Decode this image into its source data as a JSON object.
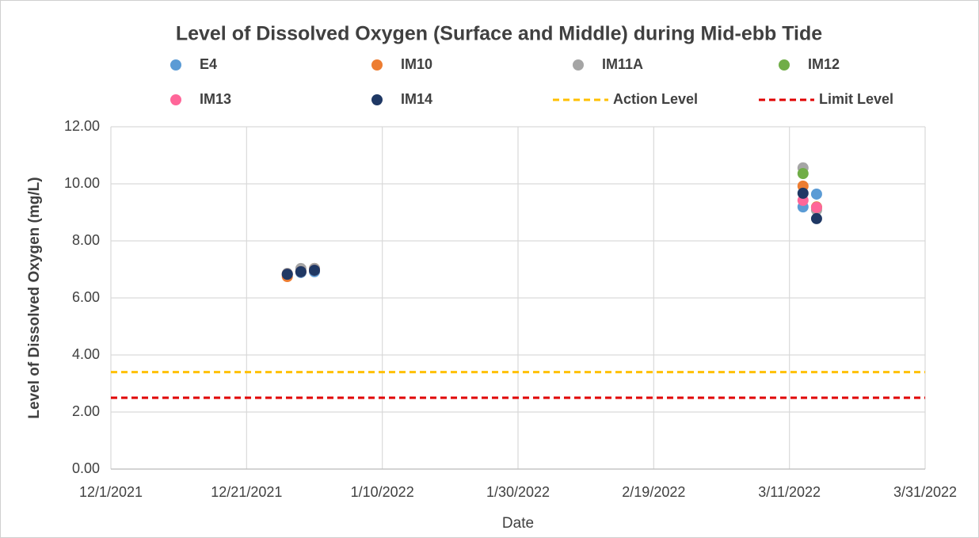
{
  "chart_data": {
    "type": "scatter",
    "title": "Level of Dissolved Oxygen (Surface and Middle) during Mid-ebb Tide",
    "x_label": "Date",
    "y_label": "Level of Dissolved Oxygen (mg/L)",
    "x": [
      "12/27/2021",
      "12/29/2021",
      "12/31/2021",
      "3/13/2022",
      "3/15/2022"
    ],
    "series": [
      {
        "name": "E4",
        "color": "#5b9bd5",
        "values": [
          6.83,
          6.89,
          6.92,
          9.19,
          9.64
        ]
      },
      {
        "name": "IM10",
        "color": "#ed7d31",
        "values": [
          6.75,
          6.92,
          7.03,
          9.92,
          9.19
        ]
      },
      {
        "name": "IM11A",
        "color": "#a5a5a5",
        "values": [
          6.86,
          7.03,
          7.03,
          10.56,
          9.08
        ]
      },
      {
        "name": "IM12",
        "color": "#70ad47",
        "values": [
          6.83,
          6.92,
          6.97,
          10.36,
          9.17
        ]
      },
      {
        "name": "IM13",
        "color": "#ff6699",
        "values": [
          6.83,
          6.92,
          6.97,
          9.42,
          9.17
        ]
      },
      {
        "name": "IM14",
        "color": "#1f3864",
        "values": [
          6.83,
          6.92,
          6.97,
          9.67,
          8.78
        ]
      }
    ],
    "reference_lines": [
      {
        "name": "Action Level",
        "color": "#ffc000",
        "value": 3.4,
        "dashed": true
      },
      {
        "name": "Limit Level",
        "color": "#e00000",
        "value": 2.5,
        "dashed": true
      }
    ],
    "xlim": [
      "12/1/2021",
      "3/31/2022"
    ],
    "xticks": [
      "12/1/2021",
      "12/21/2021",
      "1/10/2022",
      "1/30/2022",
      "2/19/2022",
      "3/11/2022",
      "3/31/2022"
    ],
    "ylim": [
      0,
      12
    ],
    "yticks": [
      {
        "value": 0,
        "label": "0.00"
      },
      {
        "value": 2,
        "label": "2.00"
      },
      {
        "value": 4,
        "label": "4.00"
      },
      {
        "value": 6,
        "label": "6.00"
      },
      {
        "value": 8,
        "label": "8.00"
      },
      {
        "value": 10,
        "label": "10.00"
      },
      {
        "value": 12,
        "label": "12.00"
      }
    ],
    "grid": true,
    "legend": "top"
  }
}
